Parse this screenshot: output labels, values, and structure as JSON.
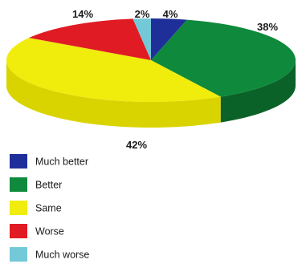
{
  "chart_data": {
    "type": "pie",
    "style": "3d",
    "title": "",
    "start": "top, clockwise",
    "legend_position": "bottom-left",
    "slices": [
      {
        "name": "Much better",
        "value": 4,
        "label": "4%",
        "color": "#1f2f9a",
        "side": "#17236f"
      },
      {
        "name": "Better",
        "value": 38,
        "label": "38%",
        "color": "#0f8a3c",
        "side": "#0b6229"
      },
      {
        "name": "Same",
        "value": 42,
        "label": "42%",
        "color": "#f0ec0c",
        "side": "#d9d400"
      },
      {
        "name": "Worse",
        "value": 14,
        "label": "14%",
        "color": "#e01b24",
        "side": "#a8121a"
      },
      {
        "name": "Much worse",
        "value": 2,
        "label": "2%",
        "color": "#74c9d8",
        "side": "#4ea6b6"
      }
    ]
  }
}
